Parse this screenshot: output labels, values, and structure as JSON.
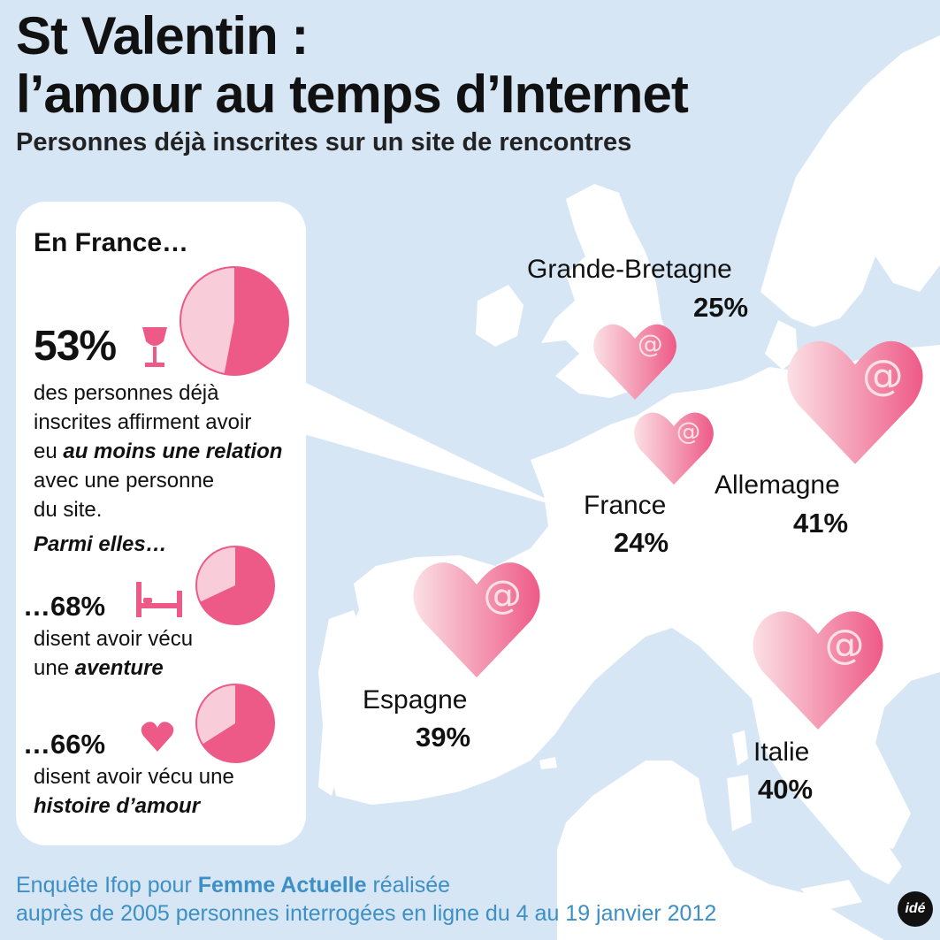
{
  "header": {
    "title_line1": "St Valentin :",
    "title_line2": "l’amour au temps d’Internet",
    "subtitle": "Personnes déjà inscrites sur un site de rencontres"
  },
  "panel": {
    "heading": "En France…",
    "main_stat": "53%",
    "main_text_1": "des personnes déjà",
    "main_text_2": "inscrites affirment avoir",
    "main_text_3a": "eu ",
    "main_text_3b": "au moins une relation",
    "main_text_4": "avec une personne",
    "main_text_5": "du site.",
    "parmi": "Parmi elles…",
    "stat2": "…68%",
    "stat2_text_1": "disent avoir vécu",
    "stat2_text_2a": "une ",
    "stat2_text_2b": "aventure",
    "stat3": "…66%",
    "stat3_text_1": "disent avoir vécu une",
    "stat3_text_2": "histoire d’amour"
  },
  "icons": {
    "glass": "wine-glass-icon",
    "bed": "bed-icon",
    "heart": "heart-icon",
    "at": "@"
  },
  "colors": {
    "background": "#d6e6f5",
    "land": "#ffffff",
    "accent": "#ee5a87",
    "accent_light": "#f8cdd9",
    "source": "#3d8fc4"
  },
  "chart_data": {
    "type": "pie",
    "title": "Personnes déjà inscrites sur un site de rencontres",
    "countries": [
      {
        "name": "Grande-Bretagne",
        "value": 25,
        "label": "25%"
      },
      {
        "name": "France",
        "value": 24,
        "label": "24%"
      },
      {
        "name": "Allemagne",
        "value": 41,
        "label": "41%"
      },
      {
        "name": "Espagne",
        "value": 39,
        "label": "39%"
      },
      {
        "name": "Italie",
        "value": 40,
        "label": "40%"
      }
    ],
    "france_pies": [
      {
        "name": "relation",
        "value": 53
      },
      {
        "name": "aventure",
        "value": 68
      },
      {
        "name": "histoire d’amour",
        "value": 66
      }
    ]
  },
  "source": {
    "line1a": "Enquête Ifop pour ",
    "line1b": "Femme Actuelle",
    "line1c": " réalisée",
    "line2": "auprès de 2005 personnes interrogées en ligne du 4 au 19 janvier 2012",
    "logo": "idé"
  }
}
